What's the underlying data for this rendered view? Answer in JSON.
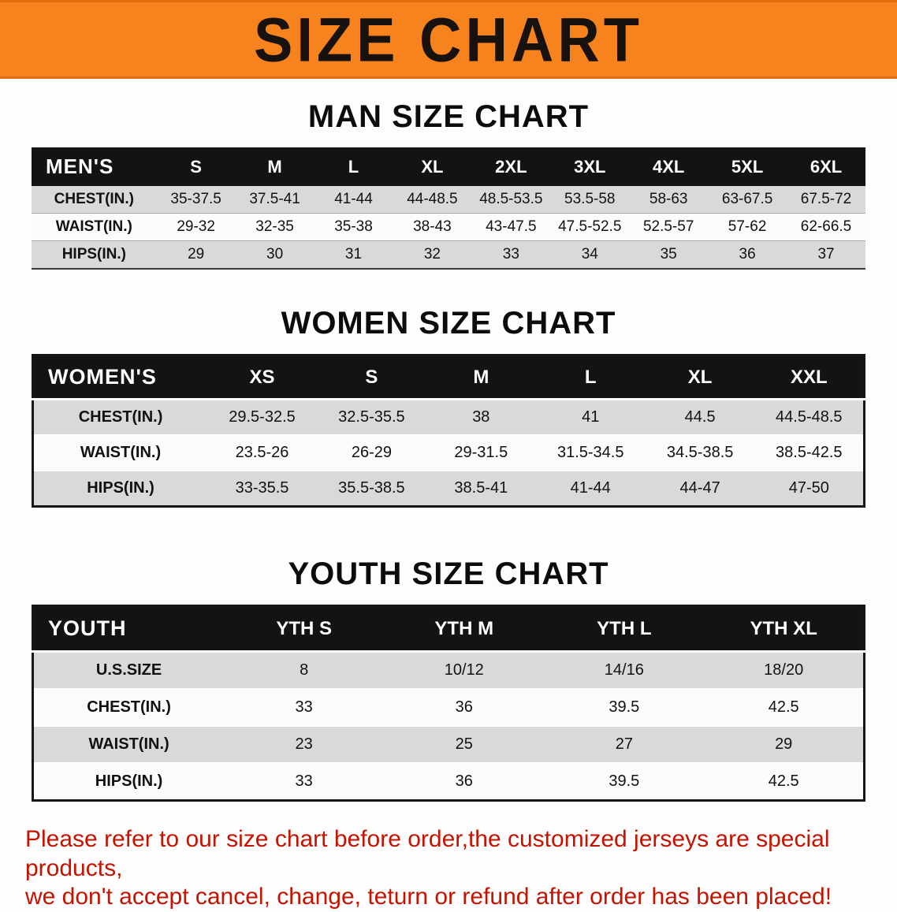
{
  "banner": {
    "title": "SIZE CHART",
    "bg_color": "#f6831d",
    "text_color": "#17120e"
  },
  "colors": {
    "table_header_bg": "#131313",
    "row_alt_gray": "#d9d9d9",
    "note_red": "#c41301"
  },
  "men_section": {
    "heading": "MAN SIZE CHART",
    "table": {
      "header": [
        "MEN'S",
        "S",
        "M",
        "L",
        "XL",
        "2XL",
        "3XL",
        "4XL",
        "5XL",
        "6XL"
      ],
      "rows": [
        [
          "CHEST(IN.)",
          "35-37.5",
          "37.5-41",
          "41-44",
          "44-48.5",
          "48.5-53.5",
          "53.5-58",
          "58-63",
          "63-67.5",
          "67.5-72"
        ],
        [
          "WAIST(IN.)",
          "29-32",
          "32-35",
          "35-38",
          "38-43",
          "43-47.5",
          "47.5-52.5",
          "52.5-57",
          "57-62",
          "62-66.5"
        ],
        [
          "HIPS(IN.)",
          "29",
          "30",
          "31",
          "32",
          "33",
          "34",
          "35",
          "36",
          "37"
        ]
      ]
    }
  },
  "women_section": {
    "heading": "WOMEN SIZE CHART",
    "table": {
      "header": [
        "WOMEN'S",
        "XS",
        "S",
        "M",
        "L",
        "XL",
        "XXL"
      ],
      "rows": [
        [
          "CHEST(IN.)",
          "29.5-32.5",
          "32.5-35.5",
          "38",
          "41",
          "44.5",
          "44.5-48.5"
        ],
        [
          "WAIST(IN.)",
          "23.5-26",
          "26-29",
          "29-31.5",
          "31.5-34.5",
          "34.5-38.5",
          "38.5-42.5"
        ],
        [
          "HIPS(IN.)",
          "33-35.5",
          "35.5-38.5",
          "38.5-41",
          "41-44",
          "44-47",
          "47-50"
        ]
      ]
    }
  },
  "youth_section": {
    "heading": "YOUTH SIZE CHART",
    "table": {
      "header": [
        "YOUTH",
        "YTH S",
        "YTH M",
        "YTH L",
        "YTH XL"
      ],
      "rows": [
        [
          "U.S.SIZE",
          "8",
          "10/12",
          "14/16",
          "18/20"
        ],
        [
          "CHEST(IN.)",
          "33",
          "36",
          "39.5",
          "42.5"
        ],
        [
          "WAIST(IN.)",
          "23",
          "25",
          "27",
          "29"
        ],
        [
          "HIPS(IN.)",
          "33",
          "36",
          "39.5",
          "42.5"
        ]
      ]
    }
  },
  "note": {
    "line1": "Please refer to our size chart before order,the customized jerseys are special products,",
    "line2": "we don't accept cancel, change, teturn or refund after order has been placed!"
  }
}
